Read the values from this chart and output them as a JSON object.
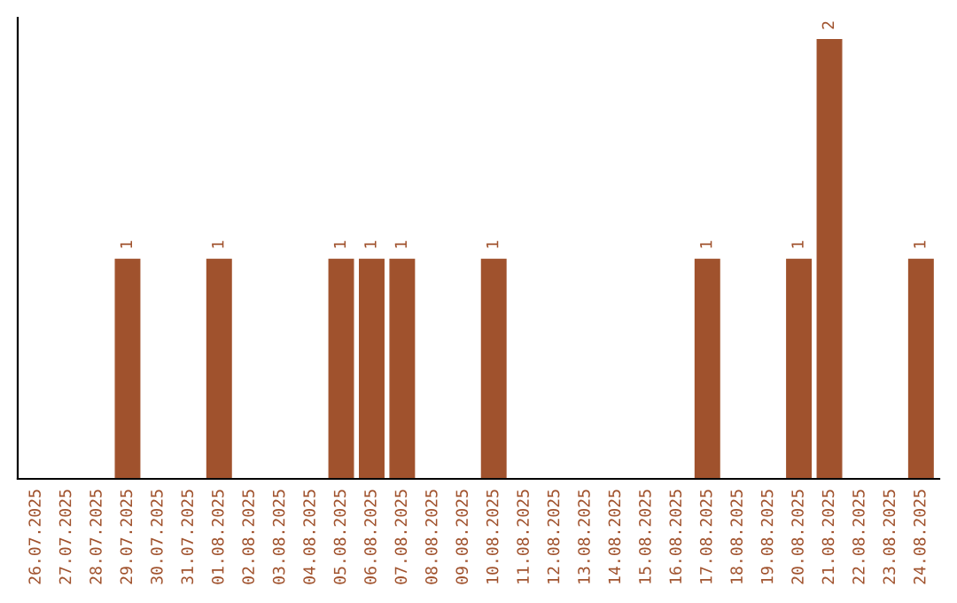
{
  "chart_data": {
    "type": "bar",
    "categories": [
      "26.07.2025",
      "27.07.2025",
      "28.07.2025",
      "29.07.2025",
      "30.07.2025",
      "31.07.2025",
      "01.08.2025",
      "02.08.2025",
      "03.08.2025",
      "04.08.2025",
      "05.08.2025",
      "06.08.2025",
      "07.08.2025",
      "08.08.2025",
      "09.08.2025",
      "10.08.2025",
      "11.08.2025",
      "12.08.2025",
      "13.08.2025",
      "14.08.2025",
      "15.08.2025",
      "16.08.2025",
      "17.08.2025",
      "18.08.2025",
      "19.08.2025",
      "20.08.2025",
      "21.08.2025",
      "22.08.2025",
      "23.08.2025",
      "24.08.2025"
    ],
    "values": [
      0,
      0,
      0,
      1,
      0,
      0,
      1,
      0,
      0,
      0,
      1,
      1,
      1,
      0,
      0,
      1,
      0,
      0,
      0,
      0,
      0,
      0,
      1,
      0,
      0,
      1,
      2,
      0,
      0,
      1
    ],
    "color": "#a0522d",
    "value_labels": [
      null,
      null,
      null,
      "1",
      null,
      null,
      "1",
      null,
      null,
      null,
      "1",
      "1",
      "1",
      null,
      null,
      "1",
      null,
      null,
      null,
      null,
      null,
      null,
      "1",
      null,
      null,
      "1",
      "2",
      null,
      null,
      "1"
    ],
    "tick_labels": "x",
    "grid": false,
    "legend": false
  }
}
